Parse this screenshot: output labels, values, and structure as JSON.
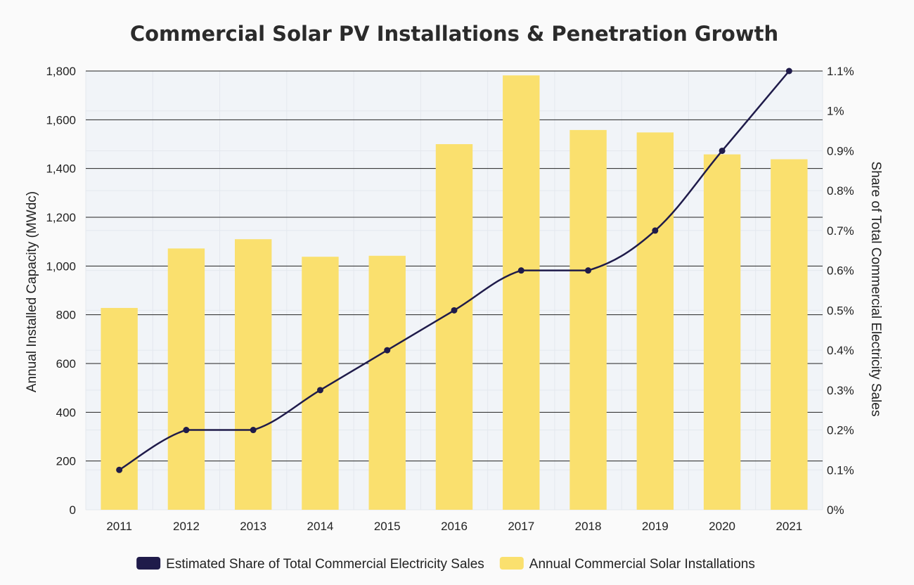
{
  "chart_data": {
    "title": "Commercial Solar PV Installations & Penetration Growth",
    "type": "bar+line",
    "categories": [
      "2011",
      "2012",
      "2013",
      "2014",
      "2015",
      "2016",
      "2017",
      "2018",
      "2019",
      "2020",
      "2021"
    ],
    "ylabel_left": "Annual Installed Capacity (MWdc)",
    "ylabel_right": "Share of Total Commercial Electricity Sales",
    "ylim_left": [
      0,
      1800
    ],
    "ylim_right": [
      0,
      1.1
    ],
    "yticks_left": [
      "0",
      "200",
      "400",
      "600",
      "800",
      "1,000",
      "1,200",
      "1,400",
      "1,600",
      "1,800"
    ],
    "yticks_right": [
      "0%",
      "0.1%",
      "0.2%",
      "0.3%",
      "0.4%",
      "0.5%",
      "0.6%",
      "0.7%",
      "0.8%",
      "0.9%",
      "1%",
      "1.1%"
    ],
    "grid": "horizontal",
    "legend_position": "bottom",
    "series": [
      {
        "name": "Estimated Share of Total Commercial Electricity Sales",
        "type": "line",
        "axis": "right",
        "unit": "%",
        "color": "#1f1b4a",
        "values": [
          0.1,
          0.2,
          0.2,
          0.3,
          0.4,
          0.5,
          0.6,
          0.6,
          0.7,
          0.9,
          1.1
        ]
      },
      {
        "name": "Annual Commercial Solar Installations",
        "type": "bar",
        "axis": "left",
        "unit": "MWdc",
        "color": "#fae06e",
        "values": [
          828,
          1072,
          1110,
          1038,
          1042,
          1500,
          1782,
          1558,
          1548,
          1458,
          1438
        ]
      }
    ]
  },
  "colors": {
    "plot_background": "#f1f4f8",
    "page_background": "#fafafa",
    "bar": "#fae06e",
    "line": "#1f1b4a",
    "major_grid": "#222222",
    "minor_grid": "#e4e8ee"
  }
}
